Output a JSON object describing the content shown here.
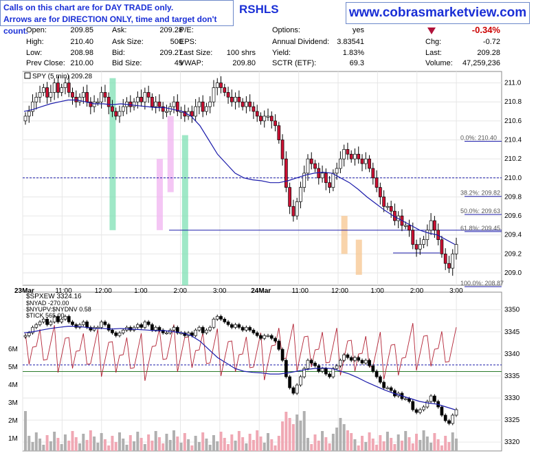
{
  "banner": {
    "line1": "Calls on this chart are for DAY TRADE only.",
    "line2": "Arrows are for DIRECTION ONLY, time and target don't count."
  },
  "brand": "www.cobrasmarketview.com",
  "ticker_header": "RSHLS",
  "quote": {
    "left": [
      {
        "label": "Open:",
        "value": "209.85"
      },
      {
        "label": "High:",
        "value": "210.40"
      },
      {
        "label": "Low:",
        "value": "208.98"
      },
      {
        "label": "Prev Close:",
        "value": "210.00"
      }
    ],
    "mid": [
      {
        "label": "Ask:",
        "value": "209.28"
      },
      {
        "label": "Ask Size:",
        "value": "500"
      },
      {
        "label": "Bid:",
        "value": "209.27"
      },
      {
        "label": "Bid Size:",
        "value": "49"
      }
    ],
    "mid2": [
      {
        "label": "P/E:",
        "value": ""
      },
      {
        "label": "EPS:",
        "value": ""
      },
      {
        "label": "Last Size:",
        "value": "100 shrs"
      },
      {
        "label": "VWAP:",
        "value": "209.80"
      }
    ],
    "right": [
      {
        "label": "Options:",
        "value": "yes"
      },
      {
        "label": "Annual Dividend:",
        "value": "3.83541"
      },
      {
        "label": "Yield:",
        "value": "1.83%"
      },
      {
        "label": "SCTR (ETF):",
        "value": "69.3"
      }
    ],
    "far": [
      {
        "label": "",
        "value": "-0.34%"
      },
      {
        "label": "Chg:",
        "value": "-0.72"
      },
      {
        "label": "Last:",
        "value": "209.28"
      },
      {
        "label": "Volume:",
        "value": "47,259,236"
      }
    ]
  },
  "chart_data": [
    {
      "type": "candlestick",
      "title": "SPY (5 min) 209.28",
      "ylim": [
        208.87,
        211.12
      ],
      "yticks": [
        209.0,
        209.2,
        209.4,
        209.6,
        209.8,
        210.0,
        210.2,
        210.4,
        210.6,
        210.8,
        211.0
      ],
      "ytick_labels": [
        "209.0",
        "209.2",
        "209.4",
        "209.6",
        "209.8",
        "210.0",
        "210.2",
        "210.4",
        "210.6",
        "210.8",
        "211.0"
      ],
      "xtick_labels": [
        "23Mar",
        "11:00",
        "12:00",
        "1:00",
        "2:00",
        "3:00",
        "24Mar",
        "11:00",
        "12:00",
        "1:00",
        "2:00",
        "3:00"
      ],
      "fib_levels": [
        {
          "label": "0.0%: 210.40",
          "value": 210.4
        },
        {
          "label": "38.2%: 209.82",
          "value": 209.82
        },
        {
          "label": "50.0%: 209.63",
          "value": 209.63
        },
        {
          "label": "61.8%: 209.45",
          "value": 209.45
        },
        {
          "label": "100.0%: 208.87",
          "value": 208.87
        }
      ],
      "horizontal_lines": [
        {
          "value": 209.45,
          "style": "solid",
          "color": "#1a1aaa"
        },
        {
          "value": 209.21,
          "style": "solid",
          "color": "#1a1aaa"
        },
        {
          "value": 210.0,
          "style": "dashed",
          "color": "#1a1aaa"
        }
      ],
      "series_close": [
        210.65,
        210.7,
        210.8,
        210.85,
        210.9,
        210.95,
        210.85,
        210.9,
        211.0,
        210.9,
        210.95,
        211.0,
        210.9,
        210.85,
        210.8,
        210.85,
        210.9,
        210.8,
        210.75,
        210.8,
        210.8,
        210.9,
        210.85,
        210.75,
        210.7,
        210.65,
        210.7,
        210.75,
        210.8,
        210.75,
        210.8,
        210.85,
        210.8,
        210.9,
        210.85,
        210.75,
        210.8,
        210.75,
        210.7,
        210.7,
        210.75,
        210.8,
        210.7,
        210.7,
        210.65,
        210.7,
        210.65,
        210.75,
        210.8,
        210.7,
        210.75,
        210.8,
        210.95,
        211.0,
        210.95,
        210.9,
        210.85,
        210.8,
        210.85,
        210.8,
        210.75,
        210.8,
        210.75,
        210.7,
        210.65,
        210.6,
        210.65,
        210.65,
        210.6,
        210.55,
        210.4,
        210.2,
        209.9,
        209.7,
        209.6,
        209.75,
        209.9,
        210.05,
        210.2,
        210.15,
        210.1,
        210.0,
        210.05,
        209.95,
        209.9,
        210.05,
        210.1,
        210.2,
        210.3,
        210.25,
        210.2,
        210.25,
        210.2,
        210.15,
        210.2,
        210.1,
        210.0,
        209.9,
        209.8,
        209.7,
        209.7,
        209.65,
        209.55,
        209.6,
        209.5,
        209.5,
        209.45,
        209.3,
        209.25,
        209.3,
        209.35,
        209.45,
        209.55,
        209.45,
        209.35,
        209.2,
        209.1,
        209.05,
        209.2,
        209.3
      ],
      "moving_average": [
        210.7,
        210.72,
        210.75,
        210.78,
        210.8,
        210.82,
        210.82,
        210.8,
        210.78,
        210.78,
        210.77,
        210.78,
        210.77,
        210.76,
        210.75,
        210.74,
        210.74,
        210.72,
        210.7,
        210.65,
        210.55,
        210.4,
        210.25,
        210.15,
        210.05,
        210.0,
        209.98,
        209.97,
        209.95,
        209.95,
        209.97,
        210.0,
        210.03,
        210.05,
        210.06,
        210.05,
        210.0,
        209.95,
        209.88,
        209.8,
        209.73,
        209.66,
        209.6,
        209.55,
        209.5,
        209.45,
        209.42,
        209.4,
        209.35,
        209.3
      ]
    },
    {
      "type": "candlestick",
      "title": "$SPXEW 3324.16",
      "series": [
        {
          "name": "$NYAD -270.00"
        },
        {
          "name": "$NYUPV:$NYDNV 0.58"
        },
        {
          "name": "$TICK 565.00"
        }
      ],
      "ylim": [
        3318,
        3354
      ],
      "yticks": [
        3320,
        3325,
        3330,
        3335,
        3340,
        3345,
        3350
      ],
      "ytick_labels": [
        "3320",
        "3325",
        "3330",
        "3335",
        "3340",
        "3345",
        "3350"
      ],
      "left_ticks": [
        "1M",
        "2M",
        "3M",
        "4M",
        "5M",
        "6M"
      ],
      "xtick_labels": [
        "23Mar",
        "11:00",
        "12:00",
        "1:00",
        "2:00",
        "3:00",
        "24Mar",
        "11:00",
        "12:00",
        "1:00",
        "2:00",
        "3:00"
      ],
      "reference_line": {
        "value": 3336,
        "color": "#2a7a2a"
      },
      "dashed_line": {
        "value": 3337.5,
        "color": "#1a1aaa"
      }
    }
  ]
}
